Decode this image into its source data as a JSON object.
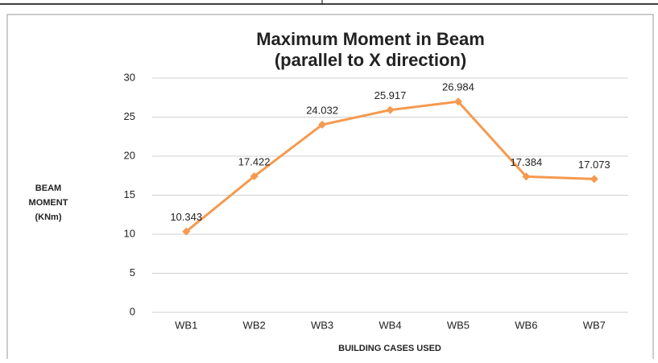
{
  "chart_data": {
    "type": "line",
    "title": [
      "Maximum Moment in Beam",
      "(parallel to X direction)"
    ],
    "y_label": [
      "BEAM",
      "MOMENT",
      "(KNm)"
    ],
    "x_label": "BUILDING CASES USED",
    "categories": [
      "WB1",
      "WB2",
      "WB3",
      "WB4",
      "WB5",
      "WB6",
      "WB7"
    ],
    "values": [
      10.343,
      17.422,
      24.032,
      25.917,
      26.984,
      17.384,
      17.073
    ],
    "color": "#f59a4f",
    "ylim": [
      0,
      30
    ],
    "yticks": [
      0,
      5,
      10,
      15,
      20,
      25,
      30
    ],
    "grid": true
  }
}
